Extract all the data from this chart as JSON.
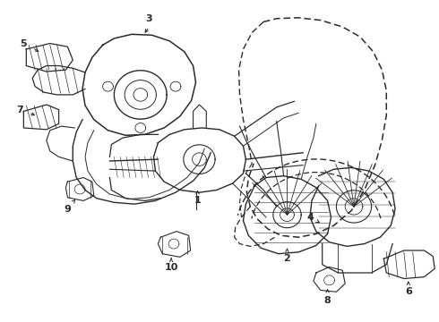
{
  "bg_color": "#ffffff",
  "line_color": "#2a2a2a",
  "lw_main": 1.0,
  "lw_thin": 0.6,
  "figsize": [
    4.9,
    3.6
  ],
  "dpi": 100
}
